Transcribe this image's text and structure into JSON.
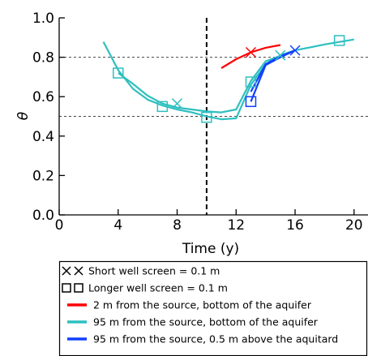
{
  "chart_data": {
    "type": "line",
    "xlabel": "Time (y)",
    "ylabel": "θ",
    "xlim": [
      0,
      21
    ],
    "ylim": [
      0,
      1.0
    ],
    "x_ticks": [
      0,
      4,
      8,
      12,
      16,
      20
    ],
    "y_ticks": [
      0.0,
      0.2,
      0.4,
      0.6,
      0.8,
      1.0
    ],
    "x_tick_labels": [
      "0",
      "4",
      "8",
      "12",
      "16",
      "20"
    ],
    "y_tick_labels": [
      "0.0",
      "0.2",
      "0.4",
      "0.6",
      "0.8",
      "1.0"
    ],
    "reference_lines": {
      "vertical_x": 10,
      "horizontal_y": [
        0.8,
        0.5
      ],
      "style": "dashed"
    },
    "colors": {
      "red": "#ff0000",
      "cyan": "#2fbfbf",
      "blue": "#1040ff"
    },
    "series": [
      {
        "color": "red",
        "marker": "x",
        "points": [
          [
            11,
            0.745
          ],
          [
            12,
            0.79
          ],
          [
            13,
            0.825
          ],
          [
            14,
            0.848
          ],
          [
            15,
            0.862
          ]
        ],
        "marker_points": [
          [
            13,
            0.825
          ]
        ]
      },
      {
        "color": "cyan",
        "marker": "x",
        "points": [
          [
            3,
            0.878
          ],
          [
            4,
            0.735
          ],
          [
            5,
            0.64
          ],
          [
            6,
            0.585
          ],
          [
            7,
            0.555
          ],
          [
            8,
            0.535
          ],
          [
            9,
            0.52
          ],
          [
            10,
            0.5
          ],
          [
            11,
            0.485
          ],
          [
            12,
            0.49
          ],
          [
            13,
            0.66
          ],
          [
            14,
            0.765
          ],
          [
            15,
            0.81
          ],
          [
            16,
            0.835
          ]
        ],
        "marker_points": [
          [
            8,
            0.565
          ],
          [
            15,
            0.81
          ]
        ]
      },
      {
        "color": "cyan",
        "marker": "square",
        "points": [
          [
            4,
            0.72
          ],
          [
            5,
            0.665
          ],
          [
            6,
            0.605
          ],
          [
            7,
            0.565
          ],
          [
            8,
            0.545
          ],
          [
            9,
            0.535
          ],
          [
            10,
            0.525
          ],
          [
            11,
            0.52
          ],
          [
            12,
            0.535
          ],
          [
            13,
            0.68
          ],
          [
            14,
            0.78
          ],
          [
            16,
            0.835
          ],
          [
            18,
            0.865
          ],
          [
            20,
            0.89
          ]
        ],
        "marker_points": [
          [
            4,
            0.72
          ],
          [
            7,
            0.55
          ],
          [
            10,
            0.495
          ],
          [
            13,
            0.675
          ],
          [
            19,
            0.885
          ]
        ]
      },
      {
        "color": "blue",
        "marker": "x",
        "points": [
          [
            13,
            0.625
          ],
          [
            14,
            0.765
          ],
          [
            15,
            0.805
          ],
          [
            16,
            0.835
          ]
        ],
        "marker_points": [
          [
            16,
            0.835
          ]
        ]
      },
      {
        "color": "blue",
        "marker": "square",
        "points": [
          [
            13,
            0.575
          ],
          [
            14,
            0.76
          ],
          [
            15,
            0.8
          ],
          [
            16,
            0.835
          ]
        ],
        "marker_points": [
          [
            13,
            0.575
          ]
        ]
      }
    ],
    "legend": {
      "placement": "bottom",
      "entries": [
        {
          "kind": "marker",
          "marker": "x",
          "label": "Short well screen = 0.1 m"
        },
        {
          "kind": "marker",
          "marker": "square",
          "label": "Longer well screen = 0.1 m"
        },
        {
          "kind": "line",
          "color": "red",
          "label": "2 m from the source, bottom of the aquifer"
        },
        {
          "kind": "line",
          "color": "cyan",
          "label": "95 m from the source, bottom of the aquifer"
        },
        {
          "kind": "line",
          "color": "blue",
          "label": "95 m from the source, 0.5 m above the aquitard"
        }
      ]
    }
  }
}
